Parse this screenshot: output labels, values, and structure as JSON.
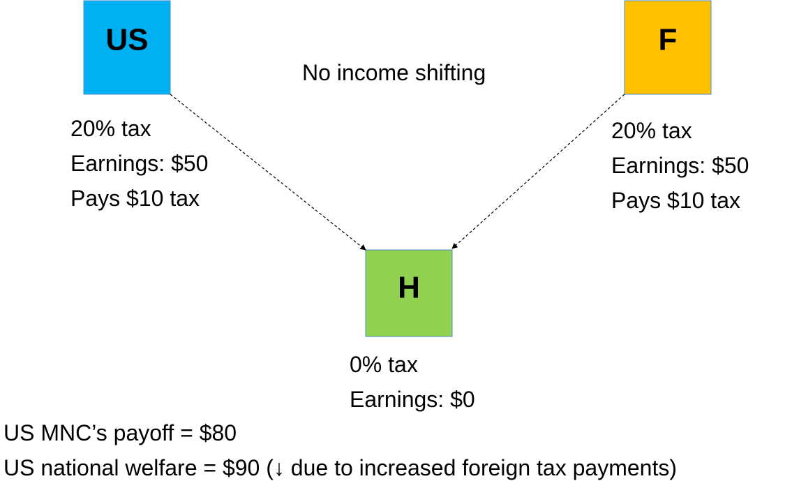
{
  "title": "No income shifting",
  "nodes": [
    {
      "label": "US",
      "lines": [
        "20% tax",
        "Earnings: $50",
        "Pays $10 tax"
      ]
    },
    {
      "label": "F",
      "lines": [
        "20% tax",
        "Earnings: $50",
        "Pays $10 tax"
      ]
    },
    {
      "label": "H",
      "lines": [
        "0% tax",
        "Earnings: $0"
      ]
    }
  ],
  "footer": [
    "US MNC’s payoff = $80",
    "US national welfare = $90 (↓ due to increased foreign tax payments)"
  ]
}
